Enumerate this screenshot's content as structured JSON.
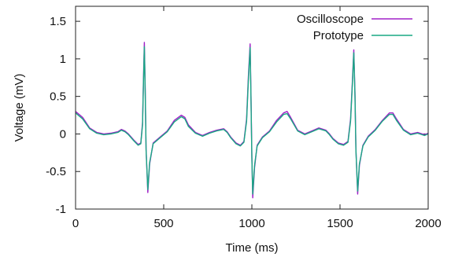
{
  "chart_data": {
    "type": "line",
    "title": "",
    "xlabel": "Time (ms)",
    "ylabel": "Voltage (mV)",
    "xlim": [
      0,
      2000
    ],
    "ylim": [
      -1,
      1.7
    ],
    "x_ticks": [
      0,
      500,
      1000,
      1500,
      2000
    ],
    "y_ticks": [
      -1,
      -0.5,
      0,
      0.5,
      1,
      1.5
    ],
    "x_tick_labels": [
      "0",
      "500",
      "1000",
      "1500",
      "2000"
    ],
    "y_tick_labels": [
      "-1",
      "-0.5",
      "0",
      "0.5",
      "1",
      "1.5"
    ],
    "grid": false,
    "legend_position": "top-right",
    "series": [
      {
        "name": "Oscilloscope",
        "color": "#a020c8",
        "x": [
          0,
          40,
          80,
          120,
          160,
          200,
          240,
          260,
          280,
          300,
          330,
          355,
          370,
          380,
          385,
          390,
          395,
          400,
          410,
          420,
          440,
          480,
          520,
          560,
          600,
          620,
          640,
          680,
          720,
          760,
          800,
          840,
          860,
          880,
          910,
          935,
          955,
          970,
          980,
          990,
          995,
          1000,
          1005,
          1015,
          1030,
          1060,
          1100,
          1140,
          1180,
          1200,
          1220,
          1260,
          1300,
          1340,
          1380,
          1420,
          1440,
          1460,
          1490,
          1520,
          1545,
          1560,
          1570,
          1578,
          1585,
          1590,
          1600,
          1610,
          1630,
          1660,
          1700,
          1740,
          1780,
          1800,
          1820,
          1860,
          1900,
          1940,
          1980,
          2000
        ],
        "y": [
          0.3,
          0.22,
          0.08,
          0.02,
          0.0,
          0.01,
          0.03,
          0.06,
          0.04,
          0.0,
          -0.08,
          -0.14,
          -0.12,
          0.15,
          0.7,
          1.22,
          0.6,
          -0.2,
          -0.78,
          -0.4,
          -0.12,
          -0.04,
          0.04,
          0.18,
          0.25,
          0.22,
          0.12,
          0.02,
          -0.02,
          0.02,
          0.05,
          0.07,
          0.03,
          -0.04,
          -0.12,
          -0.15,
          -0.1,
          0.2,
          0.75,
          1.2,
          0.5,
          -0.3,
          -0.85,
          -0.45,
          -0.15,
          -0.04,
          0.04,
          0.18,
          0.28,
          0.3,
          0.22,
          0.05,
          0.0,
          0.04,
          0.08,
          0.05,
          0.0,
          -0.06,
          -0.12,
          -0.14,
          -0.1,
          0.2,
          0.7,
          1.12,
          0.55,
          -0.2,
          -0.8,
          -0.42,
          -0.15,
          -0.03,
          0.06,
          0.18,
          0.28,
          0.28,
          0.2,
          0.06,
          0.0,
          0.02,
          -0.01,
          0.01
        ]
      },
      {
        "name": "Prototype",
        "color": "#19a884",
        "x": [
          0,
          40,
          80,
          120,
          160,
          200,
          240,
          260,
          280,
          300,
          330,
          355,
          370,
          380,
          385,
          390,
          395,
          400,
          410,
          420,
          440,
          480,
          520,
          560,
          600,
          620,
          640,
          680,
          720,
          760,
          800,
          840,
          860,
          880,
          910,
          935,
          955,
          970,
          980,
          990,
          995,
          1000,
          1005,
          1015,
          1030,
          1060,
          1100,
          1140,
          1180,
          1200,
          1220,
          1260,
          1300,
          1340,
          1380,
          1420,
          1440,
          1460,
          1490,
          1520,
          1545,
          1560,
          1570,
          1578,
          1585,
          1590,
          1600,
          1610,
          1630,
          1660,
          1700,
          1740,
          1780,
          1800,
          1820,
          1860,
          1900,
          1940,
          1980,
          2000
        ],
        "y": [
          0.28,
          0.2,
          0.07,
          0.01,
          -0.01,
          0.0,
          0.02,
          0.05,
          0.03,
          -0.01,
          -0.09,
          -0.15,
          -0.13,
          0.12,
          0.65,
          1.16,
          0.55,
          -0.22,
          -0.74,
          -0.38,
          -0.13,
          -0.05,
          0.03,
          0.16,
          0.23,
          0.2,
          0.1,
          0.01,
          -0.03,
          0.01,
          0.04,
          0.06,
          0.02,
          -0.05,
          -0.13,
          -0.16,
          -0.11,
          0.17,
          0.7,
          1.15,
          0.45,
          -0.32,
          -0.8,
          -0.42,
          -0.16,
          -0.05,
          0.03,
          0.16,
          0.26,
          0.27,
          0.2,
          0.04,
          -0.01,
          0.03,
          0.07,
          0.04,
          -0.01,
          -0.07,
          -0.13,
          -0.15,
          -0.11,
          0.17,
          0.66,
          1.08,
          0.5,
          -0.22,
          -0.76,
          -0.4,
          -0.16,
          -0.04,
          0.05,
          0.17,
          0.26,
          0.26,
          0.18,
          0.05,
          -0.01,
          0.01,
          -0.02,
          0.0
        ]
      }
    ]
  }
}
